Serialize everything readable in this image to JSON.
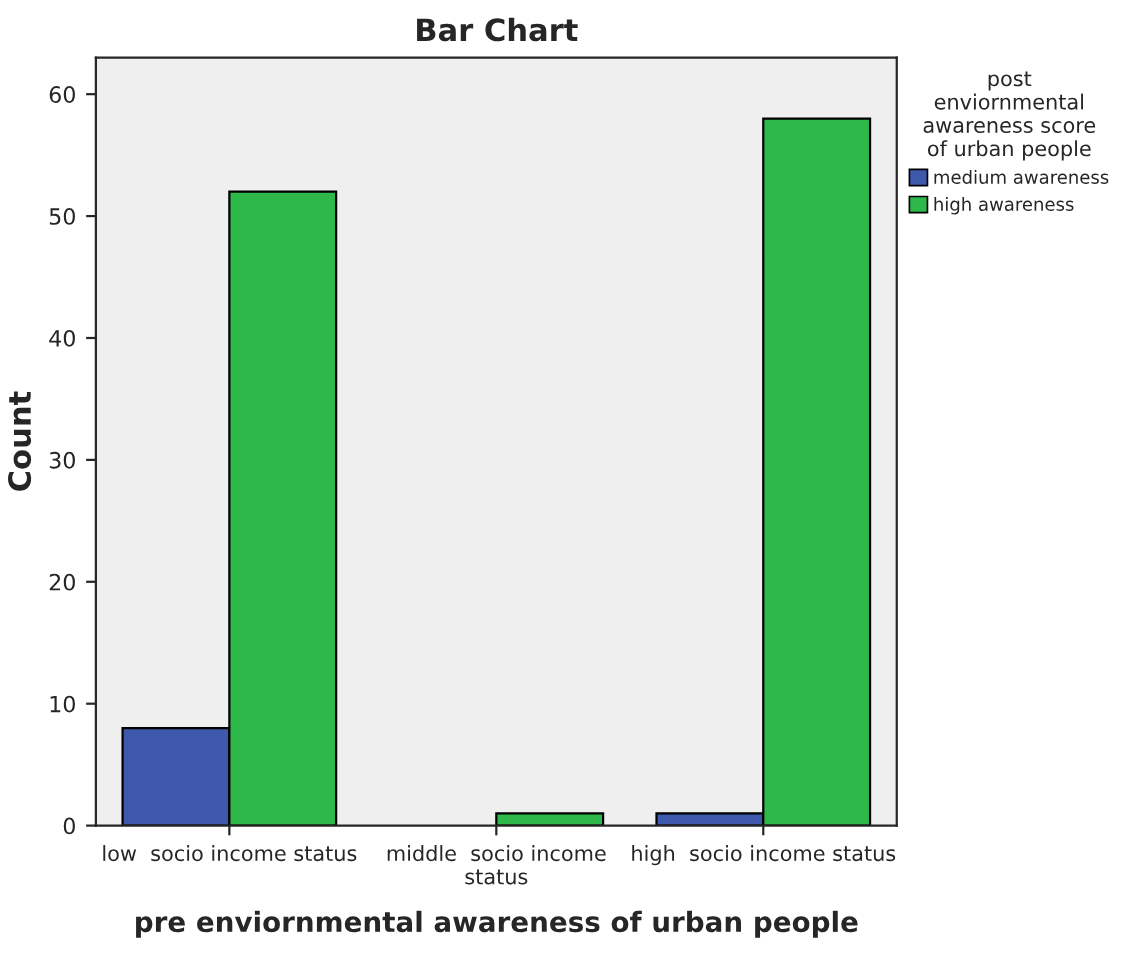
{
  "chart_data": {
    "type": "bar",
    "title": "Bar Chart",
    "xlabel": "pre enviornmental awareness of urban people",
    "ylabel": "Count",
    "legend_title": "post\nenviornmental\nawareness score\nof urban people",
    "categories": [
      "low  socio income status",
      "middle  socio income\nstatus",
      "high  socio income status"
    ],
    "series": [
      {
        "name": "medium awareness",
        "color": "#3e58ac",
        "values": [
          8,
          null,
          1
        ]
      },
      {
        "name": "high awareness",
        "color": "#2eb84a",
        "values": [
          52,
          1,
          58
        ]
      }
    ],
    "ylim": [
      0,
      63
    ],
    "yticks": [
      0,
      10,
      20,
      30,
      40,
      50,
      60
    ],
    "grid": false,
    "legend": "top right"
  }
}
